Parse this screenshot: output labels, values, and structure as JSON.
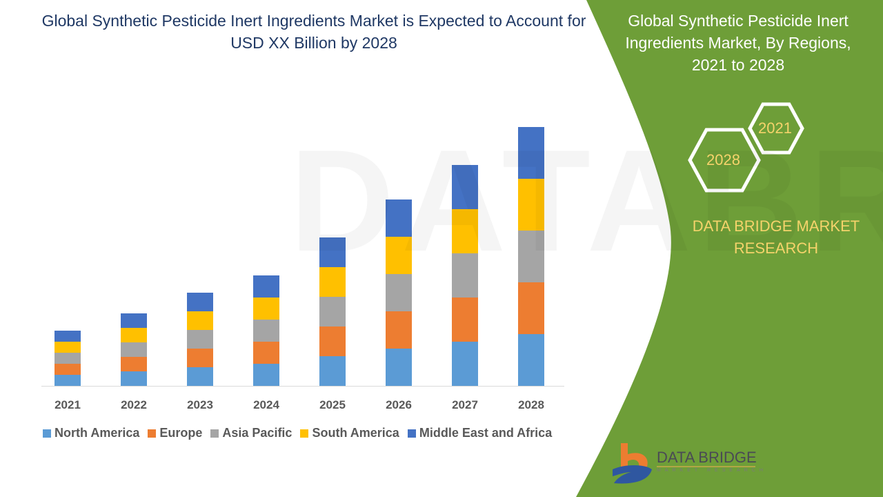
{
  "title": "Global Synthetic Pesticide Inert Ingredients Market is Expected to Account for USD XX Billion by 2028",
  "panel": {
    "title": "Global Synthetic Pesticide Inert Ingredients Market, By Regions, 2021 to 2028",
    "hex_start": "2021",
    "hex_end": "2028",
    "brand": "DATA BRIDGE MARKET RESEARCH",
    "logo_text": "DATA BRIDGE",
    "logo_sub": "MARKET RESEARCH",
    "green": "#6E9E38"
  },
  "chart_data": {
    "type": "bar",
    "stacked": true,
    "title": "",
    "xlabel": "",
    "ylabel": "",
    "y_axis_shown": false,
    "grid": false,
    "legend_position": "bottom",
    "categories": [
      "2021",
      "2022",
      "2023",
      "2024",
      "2025",
      "2026",
      "2027",
      "2028"
    ],
    "series": [
      {
        "name": "North America",
        "color": "#5B9BD5",
        "values": [
          16,
          21,
          27,
          32,
          43,
          54,
          64,
          75
        ]
      },
      {
        "name": "Europe",
        "color": "#ED7D31",
        "values": [
          16,
          21,
          27,
          32,
          43,
          54,
          64,
          75
        ]
      },
      {
        "name": "Asia Pacific",
        "color": "#A5A5A5",
        "values": [
          16,
          21,
          27,
          32,
          43,
          54,
          64,
          75
        ]
      },
      {
        "name": "South America",
        "color": "#FFC000",
        "values": [
          16,
          21,
          27,
          32,
          43,
          54,
          64,
          75
        ]
      },
      {
        "name": "Middle East and Africa",
        "color": "#4472C4",
        "values": [
          16,
          21,
          27,
          32,
          43,
          54,
          64,
          75
        ]
      }
    ]
  }
}
